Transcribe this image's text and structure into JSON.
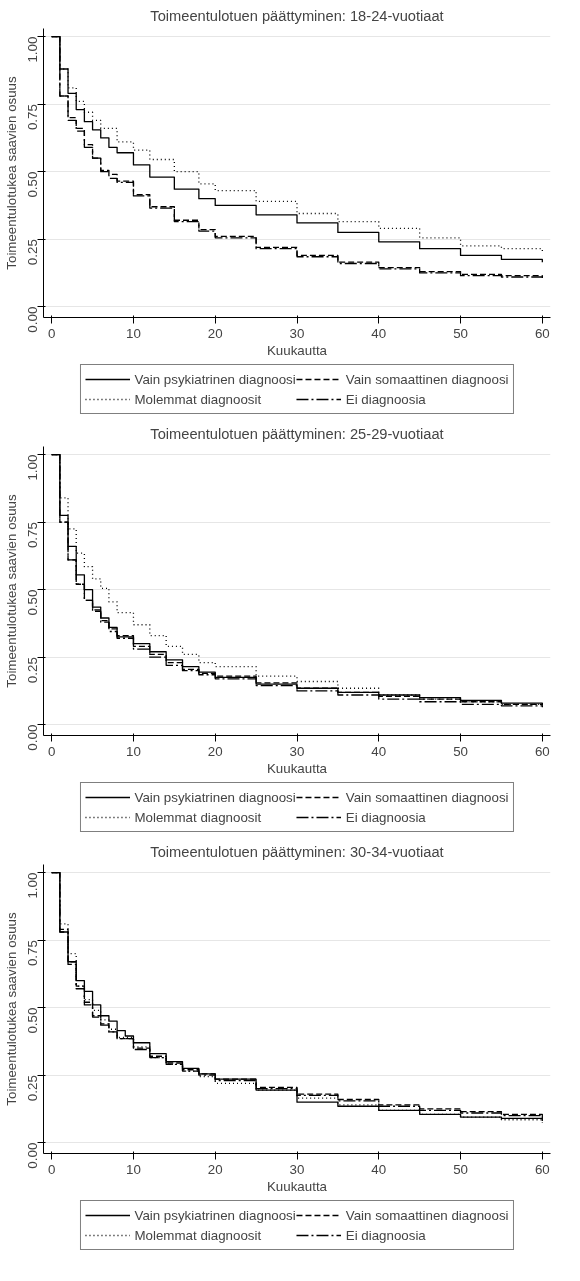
{
  "chart_data": [
    {
      "type": "step",
      "title": "Toimeentulotuen päättyminen: 18-24-vuotiaat",
      "xlabel": "Kuukautta",
      "ylabel": "Toimeentulotukea saavien osuus",
      "xlim": [
        -1,
        61
      ],
      "ylim": [
        -0.04,
        1.03
      ],
      "xticks": [
        0,
        10,
        20,
        30,
        40,
        50,
        60
      ],
      "yticks": [
        {
          "value": 0,
          "label": "0.00"
        },
        {
          "value": 0.25,
          "label": "0.25"
        },
        {
          "value": 0.5,
          "label": "0.50"
        },
        {
          "value": 0.75,
          "label": "0.75"
        },
        {
          "value": 1,
          "label": "1.00"
        }
      ],
      "grid": "y",
      "legend": "bottom",
      "series": [
        {
          "name": "Vain psykiatrinen diagnoosi",
          "color": "#000000",
          "line_style": "solid",
          "x": [
            0,
            1,
            2,
            3,
            4,
            5,
            6,
            7,
            8,
            10,
            12,
            15,
            18,
            20,
            25,
            30,
            35,
            40,
            45,
            50,
            55,
            60
          ],
          "values": [
            1,
            0.88,
            0.79,
            0.73,
            0.685,
            0.655,
            0.625,
            0.59,
            0.57,
            0.525,
            0.48,
            0.435,
            0.4,
            0.375,
            0.34,
            0.31,
            0.275,
            0.24,
            0.215,
            0.19,
            0.175,
            0.165
          ]
        },
        {
          "name": "Vain somaattinen diagnoosi",
          "color": "#000000",
          "line_style": "dashed",
          "x": [
            0,
            1,
            2,
            3,
            4,
            5,
            6,
            7,
            8,
            10,
            12,
            15,
            18,
            20,
            25,
            30,
            35,
            40,
            45,
            50,
            55,
            60
          ],
          "values": [
            1,
            0.78,
            0.7,
            0.66,
            0.6,
            0.55,
            0.505,
            0.49,
            0.465,
            0.415,
            0.37,
            0.32,
            0.285,
            0.26,
            0.22,
            0.19,
            0.165,
            0.145,
            0.13,
            0.12,
            0.115,
            0.11
          ]
        },
        {
          "name": "Molemmat diagnoosit",
          "color": "#000000",
          "line_style": "dotted",
          "x": [
            0,
            1,
            2,
            3,
            4,
            5,
            6,
            8,
            10,
            12,
            15,
            18,
            20,
            25,
            30,
            35,
            40,
            45,
            50,
            55,
            60
          ],
          "values": [
            1,
            0.88,
            0.81,
            0.76,
            0.72,
            0.69,
            0.66,
            0.61,
            0.58,
            0.545,
            0.5,
            0.455,
            0.43,
            0.39,
            0.345,
            0.315,
            0.29,
            0.255,
            0.225,
            0.215,
            0.205
          ]
        },
        {
          "name": "Ei diagnoosia",
          "color": "#000000",
          "line_style": "dashdot",
          "x": [
            0,
            1,
            2,
            3,
            4,
            5,
            6,
            7,
            8,
            10,
            12,
            15,
            18,
            20,
            25,
            30,
            35,
            40,
            45,
            50,
            55,
            60
          ],
          "values": [
            1,
            0.78,
            0.69,
            0.65,
            0.59,
            0.55,
            0.5,
            0.475,
            0.46,
            0.41,
            0.365,
            0.315,
            0.28,
            0.255,
            0.215,
            0.185,
            0.16,
            0.14,
            0.125,
            0.115,
            0.11,
            0.1
          ]
        }
      ]
    },
    {
      "type": "step",
      "title": "Toimeentulotuen päättyminen: 25-29-vuotiaat",
      "xlabel": "Kuukautta",
      "ylabel": "Toimeentulotukea saavien osuus",
      "xlim": [
        -1,
        61
      ],
      "ylim": [
        -0.04,
        1.03
      ],
      "xticks": [
        0,
        10,
        20,
        30,
        40,
        50,
        60
      ],
      "yticks": [
        {
          "value": 0,
          "label": "0.00"
        },
        {
          "value": 0.25,
          "label": "0.25"
        },
        {
          "value": 0.5,
          "label": "0.50"
        },
        {
          "value": 0.75,
          "label": "0.75"
        },
        {
          "value": 1,
          "label": "1.00"
        }
      ],
      "grid": "y",
      "legend": "bottom",
      "series": [
        {
          "name": "Vain psykiatrinen diagnoosi",
          "color": "#000000",
          "line_style": "solid",
          "x": [
            0,
            1,
            2,
            3,
            4,
            5,
            6,
            7,
            8,
            10,
            12,
            14,
            16,
            18,
            20,
            25,
            30,
            35,
            40,
            45,
            50,
            55,
            60
          ],
          "values": [
            1,
            0.775,
            0.66,
            0.555,
            0.5,
            0.435,
            0.395,
            0.36,
            0.325,
            0.3,
            0.27,
            0.24,
            0.215,
            0.195,
            0.175,
            0.15,
            0.135,
            0.12,
            0.11,
            0.1,
            0.09,
            0.08,
            0.075
          ]
        },
        {
          "name": "Vain somaattinen diagnoosi",
          "color": "#000000",
          "line_style": "dashed",
          "x": [
            0,
            1,
            2,
            3,
            4,
            5,
            6,
            7,
            8,
            10,
            12,
            14,
            16,
            18,
            20,
            25,
            30,
            35,
            40,
            45,
            50,
            55,
            60
          ],
          "values": [
            1,
            0.75,
            0.61,
            0.52,
            0.46,
            0.425,
            0.385,
            0.355,
            0.33,
            0.29,
            0.26,
            0.23,
            0.205,
            0.19,
            0.18,
            0.155,
            0.135,
            0.12,
            0.105,
            0.095,
            0.085,
            0.075,
            0.07
          ]
        },
        {
          "name": "Molemmat diagnoosit",
          "color": "#000000",
          "line_style": "dotted",
          "x": [
            0,
            1,
            2,
            3,
            4,
            5,
            6,
            7,
            8,
            10,
            12,
            14,
            16,
            18,
            20,
            25,
            30,
            35,
            40,
            45,
            50,
            55,
            60
          ],
          "values": [
            1,
            0.84,
            0.725,
            0.635,
            0.585,
            0.54,
            0.505,
            0.455,
            0.415,
            0.37,
            0.33,
            0.29,
            0.26,
            0.23,
            0.215,
            0.18,
            0.16,
            0.135,
            0.11,
            0.095,
            0.085,
            0.075,
            0.065
          ]
        },
        {
          "name": "Ei diagnoosia",
          "color": "#000000",
          "line_style": "dashdot",
          "x": [
            0,
            1,
            2,
            3,
            4,
            5,
            6,
            7,
            8,
            10,
            12,
            14,
            16,
            18,
            20,
            25,
            30,
            35,
            40,
            45,
            50,
            55,
            60
          ],
          "values": [
            1,
            0.75,
            0.61,
            0.52,
            0.46,
            0.42,
            0.38,
            0.345,
            0.32,
            0.28,
            0.25,
            0.22,
            0.2,
            0.185,
            0.17,
            0.145,
            0.125,
            0.11,
            0.095,
            0.085,
            0.075,
            0.07,
            0.065
          ]
        }
      ]
    },
    {
      "type": "step",
      "title": "Toimeentulotuen päättyminen: 30-34-vuotiaat",
      "xlabel": "Kuukautta",
      "ylabel": "Toimeentulotukea saavien osuus",
      "xlim": [
        -1,
        61
      ],
      "ylim": [
        -0.04,
        1.03
      ],
      "xticks": [
        0,
        10,
        20,
        30,
        40,
        50,
        60
      ],
      "yticks": [
        {
          "value": 0,
          "label": "0.00"
        },
        {
          "value": 0.25,
          "label": "0.25"
        },
        {
          "value": 0.5,
          "label": "0.50"
        },
        {
          "value": 0.75,
          "label": "0.75"
        },
        {
          "value": 1,
          "label": "1.00"
        }
      ],
      "grid": "y",
      "legend": "bottom",
      "series": [
        {
          "name": "Vain psykiatrinen diagnoosi",
          "color": "#000000",
          "line_style": "solid",
          "x": [
            0,
            1,
            2,
            3,
            4,
            5,
            6,
            7,
            8,
            9,
            10,
            12,
            14,
            16,
            18,
            20,
            25,
            30,
            35,
            40,
            45,
            50,
            55,
            60
          ],
          "values": [
            1,
            0.78,
            0.67,
            0.6,
            0.56,
            0.51,
            0.47,
            0.45,
            0.415,
            0.395,
            0.37,
            0.33,
            0.3,
            0.275,
            0.255,
            0.235,
            0.195,
            0.15,
            0.135,
            0.12,
            0.105,
            0.095,
            0.09,
            0.08
          ]
        },
        {
          "name": "Vain somaattinen diagnoosi",
          "color": "#000000",
          "line_style": "dashed",
          "x": [
            0,
            1,
            2,
            3,
            4,
            5,
            6,
            7,
            8,
            10,
            12,
            14,
            16,
            18,
            20,
            25,
            30,
            35,
            40,
            45,
            50,
            55,
            60
          ],
          "values": [
            1,
            0.79,
            0.67,
            0.58,
            0.52,
            0.47,
            0.44,
            0.41,
            0.385,
            0.35,
            0.32,
            0.295,
            0.27,
            0.255,
            0.235,
            0.205,
            0.18,
            0.16,
            0.14,
            0.125,
            0.115,
            0.105,
            0.095
          ]
        },
        {
          "name": "Molemmat diagnoosit",
          "color": "#000000",
          "line_style": "dotted",
          "x": [
            0,
            1,
            2,
            3,
            4,
            5,
            6,
            7,
            8,
            10,
            12,
            14,
            16,
            18,
            20,
            25,
            30,
            35,
            40,
            45,
            50,
            55,
            60
          ],
          "values": [
            1,
            0.81,
            0.7,
            0.58,
            0.53,
            0.49,
            0.455,
            0.42,
            0.39,
            0.355,
            0.315,
            0.29,
            0.265,
            0.245,
            0.22,
            0.195,
            0.165,
            0.14,
            0.12,
            0.105,
            0.095,
            0.085,
            0.075
          ]
        },
        {
          "name": "Ei diagnoosia",
          "color": "#000000",
          "line_style": "dashdot",
          "x": [
            0,
            1,
            2,
            3,
            4,
            5,
            6,
            7,
            8,
            10,
            12,
            14,
            16,
            18,
            20,
            25,
            30,
            35,
            40,
            45,
            50,
            55,
            60
          ],
          "values": [
            1,
            0.78,
            0.66,
            0.57,
            0.51,
            0.465,
            0.435,
            0.41,
            0.385,
            0.345,
            0.315,
            0.29,
            0.265,
            0.25,
            0.23,
            0.2,
            0.175,
            0.155,
            0.135,
            0.12,
            0.11,
            0.1,
            0.09
          ]
        }
      ]
    }
  ]
}
